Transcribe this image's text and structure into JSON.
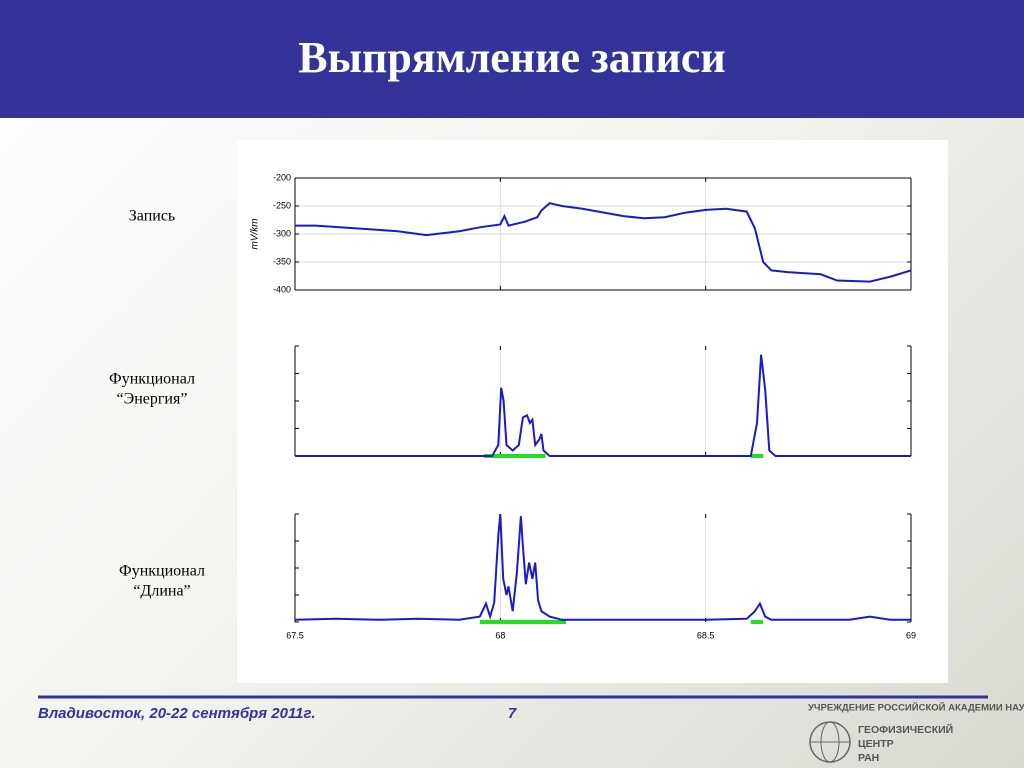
{
  "title": "Выпрямление записи",
  "footer": {
    "text": "Владивосток, 20-22 сентября 2011г.",
    "page": "7",
    "logo": [
      "УЧРЕЖДЕНИЕ РОССИЙСКОЙ АКАДЕМИИ НАУК",
      "ГЕОФИЗИЧЕСКИЙ",
      "ЦЕНТР",
      "РАН"
    ]
  },
  "chart_data": [
    {
      "type": "line",
      "label": [
        "Запись"
      ],
      "y_label": "mV/km",
      "x": [
        67.5,
        67.55,
        67.65,
        67.75,
        67.82,
        67.9,
        67.95,
        68.0,
        68.01,
        68.02,
        68.06,
        68.09,
        68.1,
        68.12,
        68.15,
        68.2,
        68.3,
        68.35,
        68.4,
        68.45,
        68.5,
        68.55,
        68.6,
        68.62,
        68.64,
        68.66,
        68.7,
        68.78,
        68.82,
        68.9,
        68.95,
        69.0
      ],
      "series": [
        {
          "color": "#1a1acc",
          "values": [
            -285,
            -285,
            -290,
            -295,
            -302,
            -295,
            -288,
            -283,
            -268,
            -285,
            -278,
            -270,
            -258,
            -245,
            -250,
            -255,
            -268,
            -272,
            -270,
            -262,
            -257,
            -255,
            -260,
            -290,
            -350,
            -365,
            -368,
            -372,
            -383,
            -385,
            -376,
            -365
          ]
        }
      ],
      "xlim": [
        67.5,
        69
      ],
      "xticks": [
        67.5,
        68,
        68.5,
        69
      ],
      "ylim": [
        -400,
        -200
      ],
      "yticks": [
        -200,
        -250,
        -300,
        -350,
        -400
      ],
      "grid": true
    },
    {
      "type": "line",
      "label": [
        "Функционал",
        "“Энергия”"
      ],
      "x": [
        67.5,
        67.98,
        67.995,
        68.002,
        68.008,
        68.015,
        68.03,
        68.045,
        68.055,
        68.065,
        68.072,
        68.078,
        68.085,
        68.095,
        68.1,
        68.105,
        68.12,
        68.61,
        68.625,
        68.635,
        68.645,
        68.655,
        68.67,
        69.0
      ],
      "series": [
        {
          "color": "#1a1acc",
          "values": [
            0,
            0,
            0.1,
            0.62,
            0.5,
            0.1,
            0.05,
            0.1,
            0.35,
            0.37,
            0.3,
            0.33,
            0.1,
            0.15,
            0.2,
            0.05,
            0,
            0,
            0.3,
            0.92,
            0.6,
            0.05,
            0,
            0
          ]
        }
      ],
      "highlights": [
        [
          67.96,
          68.11
        ],
        [
          68.61,
          68.64
        ]
      ],
      "highlight_color": "#22dd22",
      "xlim": [
        67.5,
        69
      ],
      "xticks": [
        67.5,
        68,
        68.5,
        69
      ],
      "ylim": [
        0,
        1
      ],
      "yticks": [
        0,
        0.25,
        0.5,
        0.75,
        1
      ],
      "grid": true
    },
    {
      "type": "line",
      "label": [
        "Функционал",
        "“Длина”"
      ],
      "x": [
        67.5,
        67.6,
        67.7,
        67.8,
        67.9,
        67.95,
        67.965,
        67.975,
        67.985,
        67.995,
        68.0,
        68.007,
        68.015,
        68.02,
        68.03,
        68.04,
        68.05,
        68.055,
        68.062,
        68.07,
        68.078,
        68.085,
        68.092,
        68.1,
        68.12,
        68.15,
        68.3,
        68.5,
        68.6,
        68.62,
        68.632,
        68.645,
        68.66,
        68.85,
        68.9,
        68.95,
        69.0
      ],
      "series": [
        {
          "color": "#1a1acc",
          "values": [
            0.02,
            0.03,
            0.02,
            0.03,
            0.02,
            0.05,
            0.17,
            0.05,
            0.18,
            0.8,
            1,
            0.4,
            0.25,
            0.33,
            0.1,
            0.45,
            0.98,
            0.7,
            0.35,
            0.55,
            0.4,
            0.55,
            0.2,
            0.1,
            0.05,
            0.02,
            0.02,
            0.02,
            0.03,
            0.1,
            0.17,
            0.05,
            0.02,
            0.02,
            0.05,
            0.02,
            0.02
          ]
        }
      ],
      "highlights": [
        [
          67.95,
          68.16
        ],
        [
          68.61,
          68.64
        ]
      ],
      "highlight_color": "#22dd22",
      "xlim": [
        67.5,
        69
      ],
      "xticks": [
        67.5,
        68,
        68.5,
        69
      ],
      "xtick_labels": true,
      "ylim": [
        0,
        1
      ],
      "yticks": [
        0,
        0.25,
        0.5,
        0.75,
        1
      ],
      "grid": true
    }
  ]
}
